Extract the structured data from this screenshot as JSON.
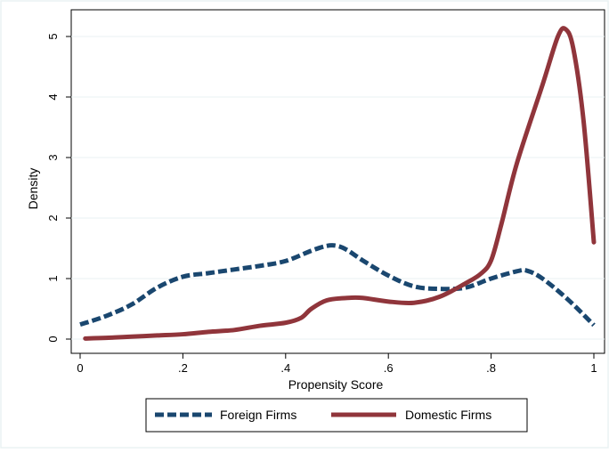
{
  "chart_data": {
    "type": "line",
    "title": "",
    "xlabel": "Propensity Score",
    "ylabel": "Density",
    "xlim": [
      0,
      1
    ],
    "ylim": [
      0,
      5.15
    ],
    "x_ticks": [
      {
        "value": 0,
        "label": "0"
      },
      {
        "value": 0.2,
        "label": ".2"
      },
      {
        "value": 0.4,
        "label": ".4"
      },
      {
        "value": 0.6,
        "label": ".6"
      },
      {
        "value": 0.8,
        "label": ".8"
      },
      {
        "value": 1,
        "label": "1"
      }
    ],
    "y_ticks": [
      {
        "value": 0,
        "label": "0"
      },
      {
        "value": 1,
        "label": "1"
      },
      {
        "value": 2,
        "label": "2"
      },
      {
        "value": 3,
        "label": "3"
      },
      {
        "value": 4,
        "label": "4"
      },
      {
        "value": 5,
        "label": "5"
      }
    ],
    "grid": "horizontal",
    "legend_position": "bottom",
    "series": [
      {
        "name": "Foreign Firms",
        "color": "#1a476f",
        "style": "dashed",
        "x": [
          0,
          0.05,
          0.1,
          0.15,
          0.2,
          0.25,
          0.3,
          0.35,
          0.4,
          0.45,
          0.48,
          0.5,
          0.52,
          0.55,
          0.6,
          0.65,
          0.7,
          0.75,
          0.8,
          0.85,
          0.87,
          0.9,
          0.95,
          1.0
        ],
        "y": [
          0.24,
          0.38,
          0.57,
          0.85,
          1.03,
          1.09,
          1.15,
          1.21,
          1.29,
          1.46,
          1.54,
          1.54,
          1.47,
          1.3,
          1.05,
          0.87,
          0.83,
          0.85,
          1.0,
          1.12,
          1.13,
          1.0,
          0.65,
          0.23
        ]
      },
      {
        "name": "Domestic Firms",
        "color": "#90353b",
        "style": "solid",
        "x": [
          0.01,
          0.05,
          0.1,
          0.15,
          0.2,
          0.25,
          0.3,
          0.35,
          0.4,
          0.43,
          0.45,
          0.48,
          0.52,
          0.55,
          0.6,
          0.65,
          0.7,
          0.75,
          0.78,
          0.8,
          0.82,
          0.85,
          0.9,
          0.93,
          0.945,
          0.96,
          0.98,
          1.0
        ],
        "y": [
          0.01,
          0.02,
          0.04,
          0.06,
          0.08,
          0.12,
          0.15,
          0.22,
          0.27,
          0.35,
          0.5,
          0.64,
          0.68,
          0.68,
          0.62,
          0.6,
          0.7,
          0.92,
          1.08,
          1.3,
          1.9,
          2.9,
          4.2,
          5.0,
          5.12,
          4.8,
          3.6,
          1.6
        ]
      }
    ]
  }
}
